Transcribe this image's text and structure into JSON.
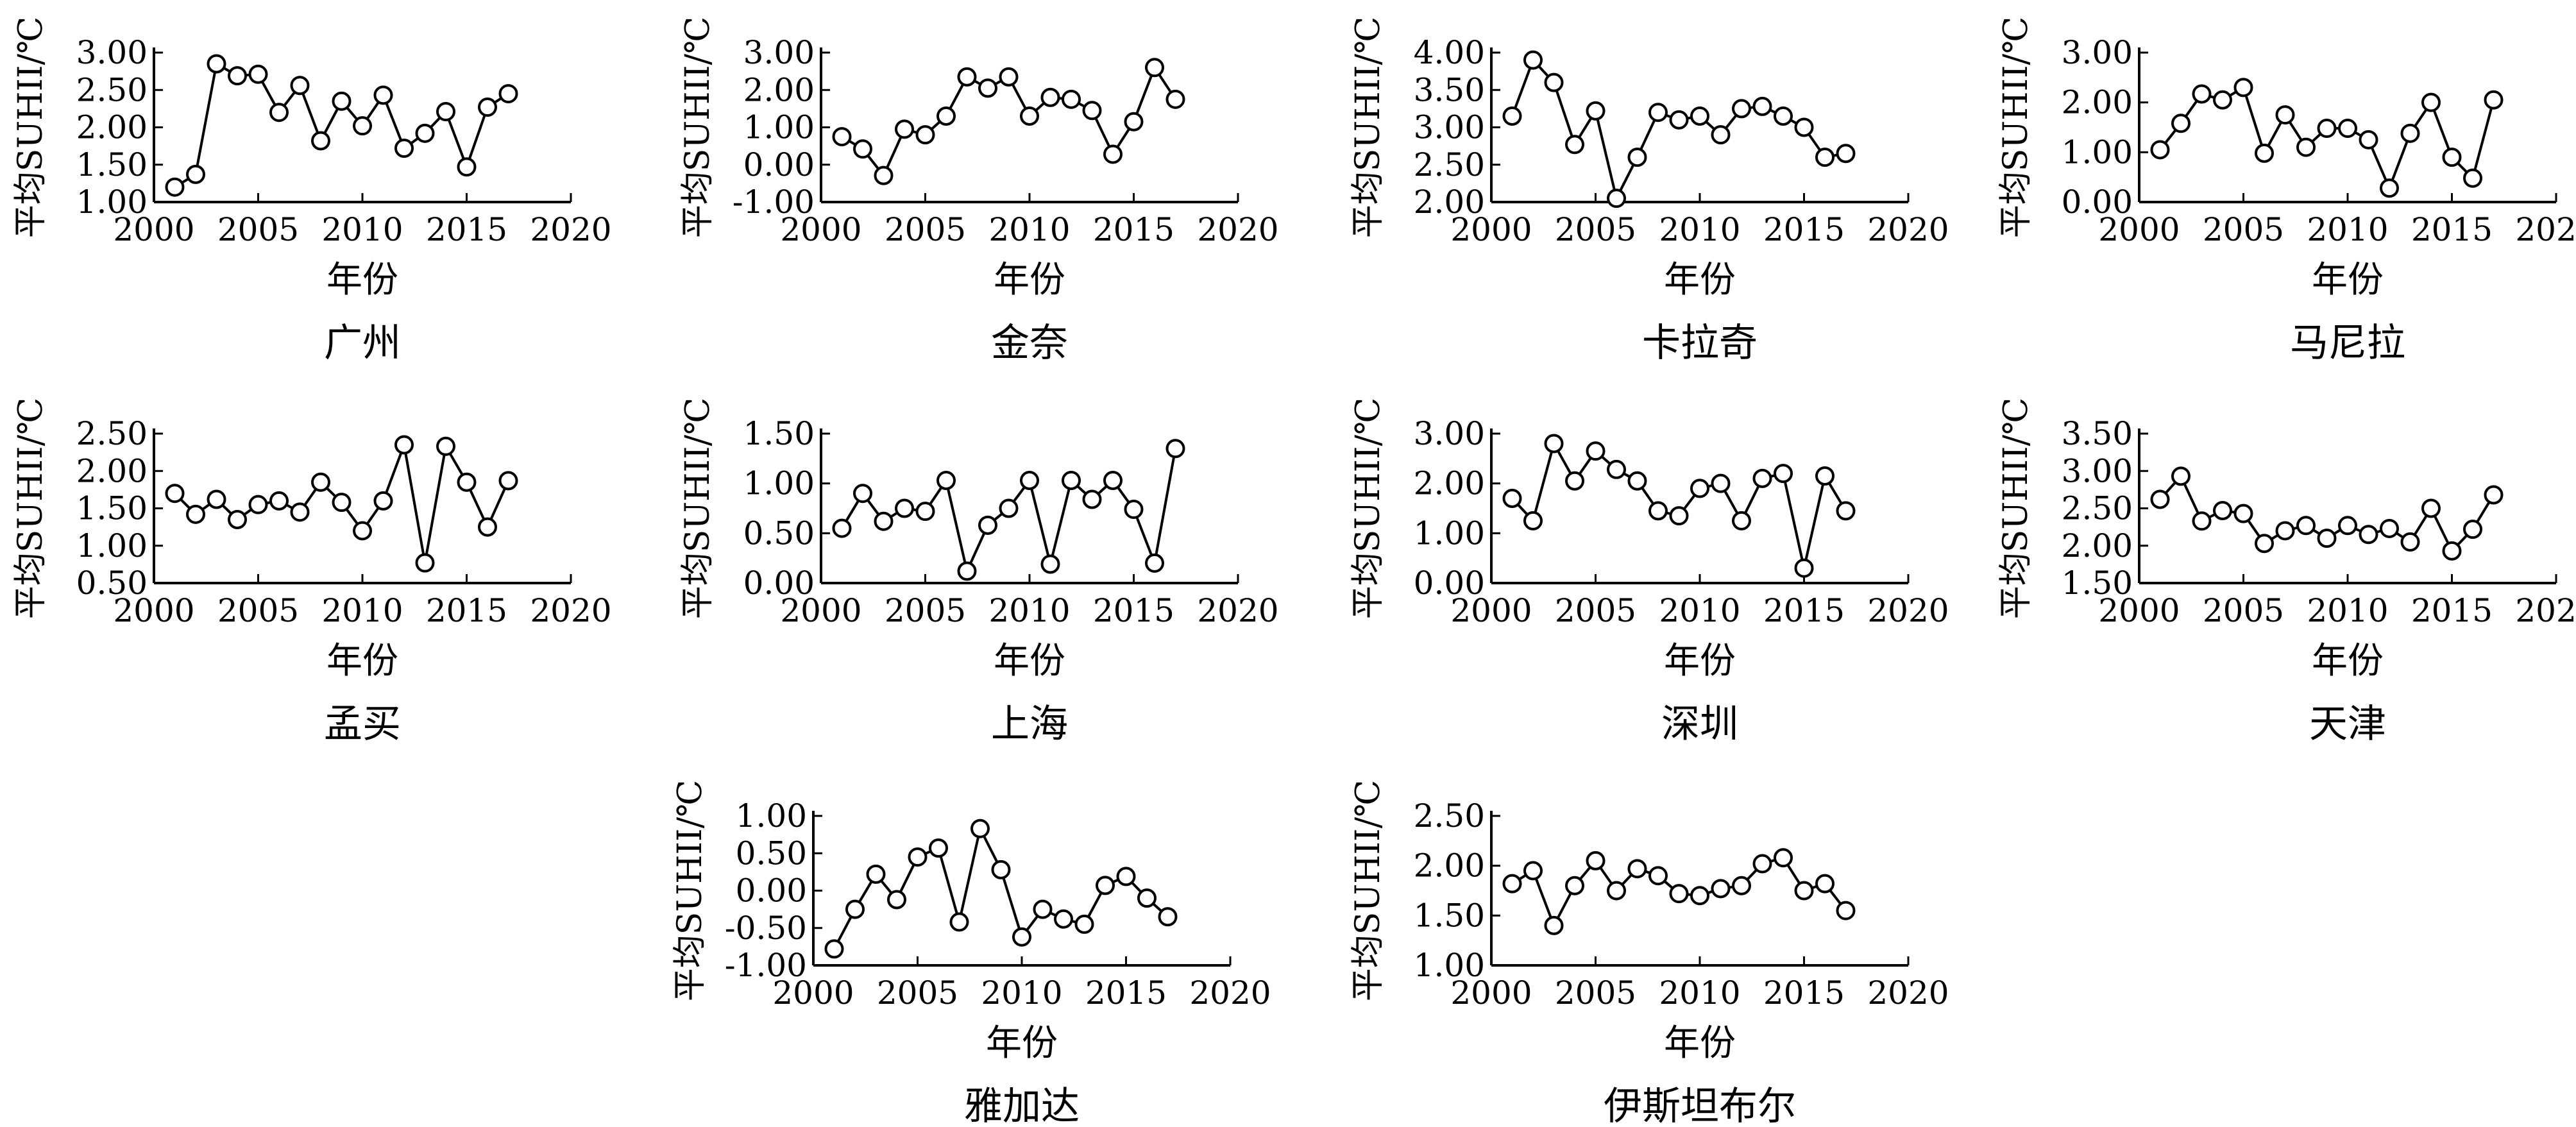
{
  "figure": {
    "x_label": "年份",
    "y_label": "平均SUHII/℃",
    "x_ticks": [
      2000,
      2005,
      2010,
      2015,
      2020
    ],
    "line_color": "#000000",
    "marker_fill": "#ffffff"
  },
  "chart_data": [
    {
      "type": "line",
      "title": "广州",
      "xlabel": "年份",
      "ylabel": "平均SUHII/℃",
      "x": [
        2001,
        2002,
        2003,
        2004,
        2005,
        2006,
        2007,
        2008,
        2009,
        2010,
        2011,
        2012,
        2013,
        2014,
        2015,
        2016,
        2017
      ],
      "values": [
        1.2,
        1.37,
        2.85,
        2.69,
        2.71,
        2.2,
        2.56,
        1.82,
        2.35,
        2.02,
        2.43,
        1.72,
        1.92,
        2.21,
        1.47,
        2.27,
        2.45
      ],
      "xlim": [
        2000,
        2020
      ],
      "ylim": [
        1.0,
        3.0
      ],
      "yticks": [
        "1.00",
        "1.50",
        "2.00",
        "2.50",
        "3.00"
      ]
    },
    {
      "type": "line",
      "title": "金奈",
      "xlabel": "年份",
      "ylabel": "平均SUHII/℃",
      "x": [
        2001,
        2002,
        2003,
        2004,
        2005,
        2006,
        2007,
        2008,
        2009,
        2010,
        2011,
        2012,
        2013,
        2014,
        2015,
        2016,
        2017
      ],
      "values": [
        0.75,
        0.42,
        -0.29,
        0.95,
        0.8,
        1.3,
        2.35,
        2.05,
        2.35,
        1.3,
        1.8,
        1.75,
        1.45,
        0.28,
        1.15,
        2.6,
        1.75
      ],
      "xlim": [
        2000,
        2020
      ],
      "ylim": [
        -1.0,
        3.0
      ],
      "yticks": [
        "-1.00",
        "0.00",
        "1.00",
        "2.00",
        "3.00"
      ]
    },
    {
      "type": "line",
      "title": "卡拉奇",
      "xlabel": "年份",
      "ylabel": "平均SUHII/℃",
      "x": [
        2001,
        2002,
        2003,
        2004,
        2005,
        2006,
        2007,
        2008,
        2009,
        2010,
        2011,
        2012,
        2013,
        2014,
        2015,
        2016,
        2017
      ],
      "values": [
        3.15,
        3.9,
        3.6,
        2.77,
        3.22,
        2.05,
        2.6,
        3.2,
        3.1,
        3.15,
        2.9,
        3.25,
        3.28,
        3.15,
        3.0,
        2.6,
        2.65
      ],
      "xlim": [
        2000,
        2020
      ],
      "ylim": [
        2.0,
        4.0
      ],
      "yticks": [
        "2.00",
        "2.50",
        "3.00",
        "3.50",
        "4.00"
      ]
    },
    {
      "type": "line",
      "title": "马尼拉",
      "xlabel": "年份",
      "ylabel": "平均SUHII/℃",
      "x": [
        2001,
        2002,
        2003,
        2004,
        2005,
        2006,
        2007,
        2008,
        2009,
        2010,
        2011,
        2012,
        2013,
        2014,
        2015,
        2016,
        2017
      ],
      "values": [
        1.05,
        1.58,
        2.17,
        2.05,
        2.3,
        0.98,
        1.75,
        1.1,
        1.48,
        1.48,
        1.25,
        0.28,
        1.38,
        2.0,
        0.9,
        0.48,
        2.05
      ],
      "xlim": [
        2000,
        2020
      ],
      "ylim": [
        0.0,
        3.0
      ],
      "yticks": [
        "0.00",
        "1.00",
        "2.00",
        "3.00"
      ]
    },
    {
      "type": "line",
      "title": "孟买",
      "xlabel": "年份",
      "ylabel": "平均SUHII/℃",
      "x": [
        2001,
        2002,
        2003,
        2004,
        2005,
        2006,
        2007,
        2008,
        2009,
        2010,
        2011,
        2012,
        2013,
        2014,
        2015,
        2016,
        2017
      ],
      "values": [
        1.7,
        1.42,
        1.62,
        1.35,
        1.55,
        1.6,
        1.45,
        1.85,
        1.58,
        1.2,
        1.6,
        2.35,
        0.77,
        2.33,
        1.85,
        1.25,
        1.87
      ],
      "xlim": [
        2000,
        2020
      ],
      "ylim": [
        0.5,
        2.5
      ],
      "yticks": [
        "0.50",
        "1.00",
        "1.50",
        "2.00",
        "2.50"
      ]
    },
    {
      "type": "line",
      "title": "上海",
      "xlabel": "年份",
      "ylabel": "平均SUHII/℃",
      "x": [
        2001,
        2002,
        2003,
        2004,
        2005,
        2006,
        2007,
        2008,
        2009,
        2010,
        2011,
        2012,
        2013,
        2014,
        2015,
        2016,
        2017
      ],
      "values": [
        0.55,
        0.9,
        0.62,
        0.75,
        0.72,
        1.03,
        0.12,
        0.58,
        0.75,
        1.03,
        0.19,
        1.03,
        0.84,
        1.03,
        0.74,
        0.2,
        1.35
      ],
      "xlim": [
        2000,
        2020
      ],
      "ylim": [
        0.0,
        1.5
      ],
      "yticks": [
        "0.00",
        "0.50",
        "1.00",
        "1.50"
      ]
    },
    {
      "type": "line",
      "title": "深圳",
      "xlabel": "年份",
      "ylabel": "平均SUHII/℃",
      "x": [
        2001,
        2002,
        2003,
        2004,
        2005,
        2006,
        2007,
        2008,
        2009,
        2010,
        2011,
        2012,
        2013,
        2014,
        2015,
        2016,
        2017
      ],
      "values": [
        1.7,
        1.25,
        2.8,
        2.05,
        2.65,
        2.28,
        2.05,
        1.45,
        1.35,
        1.9,
        2.0,
        1.25,
        2.1,
        2.2,
        0.3,
        2.15,
        1.45
      ],
      "xlim": [
        2000,
        2020
      ],
      "ylim": [
        0.0,
        3.0
      ],
      "yticks": [
        "0.00",
        "1.00",
        "2.00",
        "3.00"
      ]
    },
    {
      "type": "line",
      "title": "天津",
      "xlabel": "年份",
      "ylabel": "平均SUHII/℃",
      "x": [
        2001,
        2002,
        2003,
        2004,
        2005,
        2006,
        2007,
        2008,
        2009,
        2010,
        2011,
        2012,
        2013,
        2014,
        2015,
        2016,
        2017
      ],
      "values": [
        2.62,
        2.93,
        2.33,
        2.47,
        2.43,
        2.03,
        2.2,
        2.27,
        2.1,
        2.27,
        2.15,
        2.23,
        2.05,
        2.5,
        1.93,
        2.22,
        2.68
      ],
      "xlim": [
        2000,
        2020
      ],
      "ylim": [
        1.5,
        3.5
      ],
      "yticks": [
        "1.50",
        "2.00",
        "2.50",
        "3.00",
        "3.50"
      ]
    },
    {
      "type": "line",
      "title": "雅加达",
      "xlabel": "年份",
      "ylabel": "平均SUHII/℃",
      "x": [
        2001,
        2002,
        2003,
        2004,
        2005,
        2006,
        2007,
        2008,
        2009,
        2010,
        2011,
        2012,
        2013,
        2014,
        2015,
        2016,
        2017
      ],
      "values": [
        -0.78,
        -0.25,
        0.22,
        -0.12,
        0.45,
        0.57,
        -0.42,
        0.83,
        0.28,
        -0.62,
        -0.25,
        -0.38,
        -0.45,
        0.07,
        0.19,
        -0.1,
        -0.35
      ],
      "xlim": [
        2000,
        2020
      ],
      "ylim": [
        -1.0,
        1.0
      ],
      "yticks": [
        "-1.00",
        "-0.50",
        "0.00",
        "0.50",
        "1.00"
      ]
    },
    {
      "type": "line",
      "title": "伊斯坦布尔",
      "xlabel": "年份",
      "ylabel": "平均SUHII/℃",
      "x": [
        2001,
        2002,
        2003,
        2004,
        2005,
        2006,
        2007,
        2008,
        2009,
        2010,
        2011,
        2012,
        2013,
        2014,
        2015,
        2016,
        2017
      ],
      "values": [
        1.82,
        1.95,
        1.4,
        1.8,
        2.05,
        1.75,
        1.97,
        1.9,
        1.72,
        1.7,
        1.77,
        1.8,
        2.02,
        2.08,
        1.75,
        1.82,
        1.55
      ],
      "xlim": [
        2000,
        2020
      ],
      "ylim": [
        1.0,
        2.5
      ],
      "yticks": [
        "1.00",
        "1.50",
        "2.00",
        "2.50"
      ]
    }
  ]
}
